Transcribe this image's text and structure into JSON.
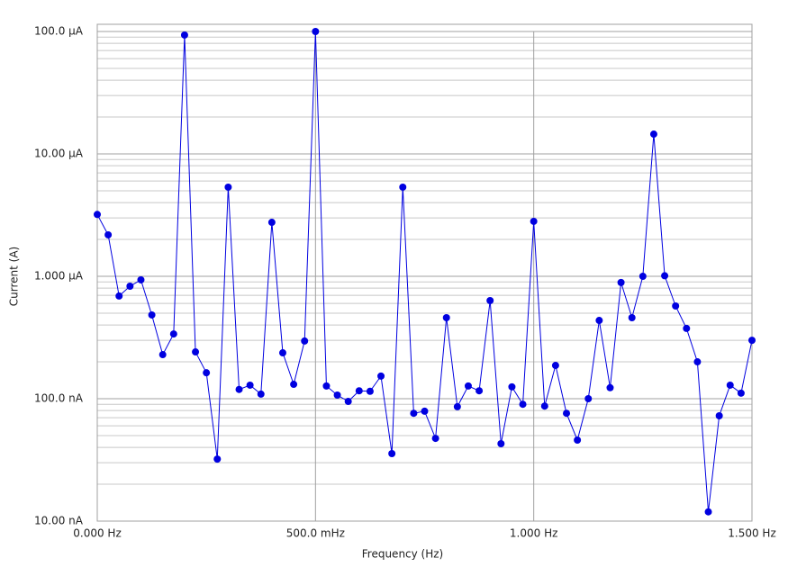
{
  "chart_data": {
    "type": "line",
    "log_y": true,
    "grid": true,
    "x_label": "Frequency (Hz)",
    "y_label": "Current (A)",
    "x": [
      0,
      0.025,
      0.05,
      0.075,
      0.1,
      0.125,
      0.15,
      0.175,
      0.2,
      0.225,
      0.25,
      0.275,
      0.3,
      0.325,
      0.35,
      0.375,
      0.4,
      0.425,
      0.45,
      0.475,
      0.5,
      0.525,
      0.55,
      0.575,
      0.6,
      0.625,
      0.65,
      0.675,
      0.7,
      0.725,
      0.75,
      0.775,
      0.8,
      0.825,
      0.85,
      0.875,
      0.9,
      0.925,
      0.95,
      0.975,
      1.0,
      1.025,
      1.05,
      1.075,
      1.1,
      1.125,
      1.15,
      1.175,
      1.2,
      1.225,
      1.25,
      1.275,
      1.3,
      1.325,
      1.35,
      1.375,
      1.4,
      1.425,
      1.45,
      1.475,
      1.5
    ],
    "series": [
      {
        "color": "#0000e0",
        "values": [
          3.2e-06,
          2.18e-06,
          6.9e-07,
          8.3e-07,
          9.35e-07,
          4.83e-07,
          2.29e-07,
          3.38e-07,
          9.35e-05,
          2.41e-07,
          1.63e-07,
          3.21e-08,
          5.35e-06,
          1.19e-07,
          1.29e-07,
          1.09e-07,
          2.76e-06,
          2.37e-07,
          1.31e-07,
          2.96e-07,
          0.0001,
          1.27e-07,
          1.07e-07,
          9.5e-08,
          1.16e-07,
          1.15e-07,
          1.53e-07,
          3.56e-08,
          5.35e-06,
          7.6e-08,
          7.9e-08,
          4.74e-08,
          4.59e-07,
          8.6e-08,
          1.27e-07,
          1.16e-07,
          6.33e-07,
          4.29e-08,
          1.25e-07,
          9e-08,
          2.81e-06,
          8.7e-08,
          1.87e-07,
          7.6e-08,
          4.59e-08,
          1e-07,
          4.36e-07,
          1.23e-07,
          8.9e-07,
          4.59e-07,
          1e-06,
          1.45e-05,
          1.01e-06,
          5.72e-07,
          3.75e-07,
          2e-07,
          1.19e-08,
          7.25e-08,
          1.29e-07,
          1.11e-07,
          3e-07
        ]
      }
    ],
    "xlim": [
      0,
      1.5
    ],
    "xticks": [
      {
        "value": 0,
        "label": "0.000 Hz"
      },
      {
        "value": 0.5,
        "label": "500.0 mHz"
      },
      {
        "value": 1,
        "label": "1.000 Hz"
      },
      {
        "value": 1.5,
        "label": "1.500 Hz"
      }
    ],
    "ylim": [
      1e-08,
      0.0001
    ],
    "yticks": [
      {
        "value": 1e-08,
        "label": "10.00 nA"
      },
      {
        "value": 1e-07,
        "label": "100.0 nA"
      },
      {
        "value": 1e-06,
        "label": "1.000 µA"
      },
      {
        "value": 1e-05,
        "label": "10.00 µA"
      },
      {
        "value": 0.0001,
        "label": "100.0 µA"
      }
    ]
  }
}
